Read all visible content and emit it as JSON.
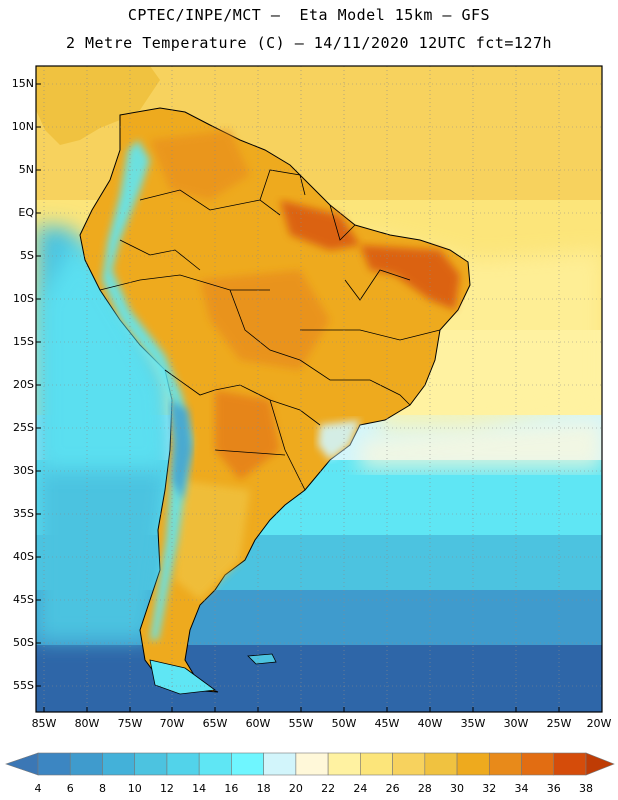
{
  "header": {
    "line1": "CPTEC/INPE/MCT –  Eta Model 15km – GFS",
    "line2": "2 Metre Temperature (C) – 14/11/2020 12UTC fct=127h"
  },
  "axes": {
    "lat_labels": [
      "15N",
      "10N",
      "5N",
      "EQ",
      "5S",
      "10S",
      "15S",
      "20S",
      "25S",
      "30S",
      "35S",
      "40S",
      "45S",
      "50S",
      "55S"
    ],
    "lon_labels": [
      "85W",
      "80W",
      "75W",
      "70W",
      "65W",
      "60W",
      "55W",
      "50W",
      "45W",
      "40W",
      "35W",
      "30W",
      "25W",
      "20W"
    ]
  },
  "colorbar": {
    "values": [
      "4",
      "6",
      "8",
      "10",
      "12",
      "14",
      "16",
      "18",
      "20",
      "22",
      "24",
      "26",
      "28",
      "30",
      "32",
      "34",
      "36",
      "38"
    ],
    "colors": [
      "#3b77b5",
      "#3c86c2",
      "#3f9bcd",
      "#43b1d9",
      "#4cc3e0",
      "#52d3ea",
      "#5fe6f4",
      "#6ff6ff",
      "#d2f5fb",
      "#fff8d9",
      "#fff2a1",
      "#fce57a",
      "#f7d25e",
      "#f0c240",
      "#eeaa1e",
      "#e88a1a",
      "#e26d12",
      "#d54c0a",
      "#bf3c05"
    ]
  },
  "colors": {
    "ocean_deep": "#2e66a8",
    "ocean_mid": "#3f9bcd",
    "ocean_cool": "#4cc3e0",
    "ocean_warm": "#fce57a",
    "ocean_tropical": "#f7d25e",
    "land_hot": "#e0781a",
    "land_warm": "#eeaa1e",
    "andes": "#5fe6f4"
  }
}
